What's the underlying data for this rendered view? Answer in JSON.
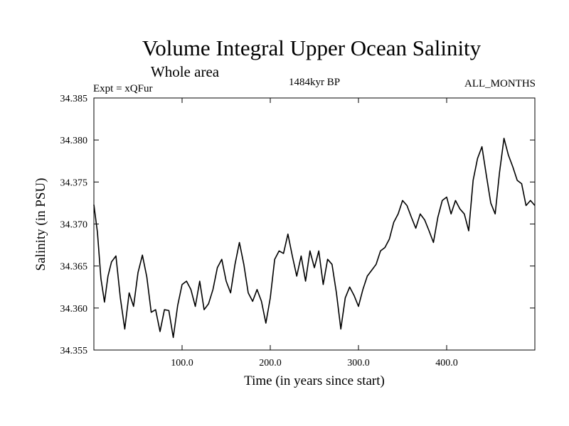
{
  "chart_data": {
    "type": "line",
    "title": "Volume Integral Upper Ocean Salinity",
    "subtitle": "Whole area",
    "expt_label": "Expt = xQFur",
    "period_label": "1484kyr BP",
    "months_label": "ALL_MONTHS",
    "xlabel": "Time (in years since start)",
    "ylabel": "Salinity (in PSU)",
    "xlim": [
      0,
      500
    ],
    "ylim": [
      34.355,
      34.385
    ],
    "xticks": [
      100,
      200,
      300,
      400
    ],
    "xtick_labels": [
      "100.0",
      "200.0",
      "300.0",
      "400.0"
    ],
    "yticks": [
      34.355,
      34.36,
      34.365,
      34.37,
      34.375,
      34.38,
      34.385
    ],
    "ytick_labels": [
      "34.355",
      "34.360",
      "34.365",
      "34.370",
      "34.375",
      "34.380",
      "34.385"
    ],
    "grid": false,
    "series": [
      {
        "name": "Salinity",
        "x": [
          0,
          4,
          8,
          12,
          16,
          20,
          25,
          30,
          35,
          40,
          45,
          50,
          55,
          60,
          65,
          70,
          75,
          80,
          85,
          90,
          95,
          100,
          105,
          110,
          115,
          120,
          125,
          130,
          135,
          140,
          145,
          150,
          155,
          160,
          165,
          170,
          175,
          180,
          185,
          190,
          195,
          200,
          205,
          210,
          215,
          220,
          225,
          230,
          235,
          240,
          245,
          250,
          255,
          260,
          265,
          270,
          275,
          280,
          285,
          290,
          295,
          300,
          305,
          310,
          315,
          320,
          325,
          330,
          335,
          340,
          345,
          350,
          355,
          360,
          365,
          370,
          375,
          380,
          385,
          390,
          395,
          400,
          405,
          410,
          415,
          420,
          425,
          430,
          435,
          440,
          445,
          450,
          455,
          460,
          465,
          470,
          475,
          480,
          485,
          490,
          495,
          500
        ],
        "values": [
          34.3723,
          34.369,
          34.3635,
          34.3607,
          34.3638,
          34.3655,
          34.3662,
          34.3612,
          34.3575,
          34.3618,
          34.3602,
          34.3642,
          34.3663,
          34.3637,
          34.3595,
          34.3598,
          34.3572,
          34.3598,
          34.3597,
          34.3565,
          34.3603,
          34.3628,
          34.3632,
          34.3622,
          34.3602,
          34.3632,
          34.3598,
          34.3605,
          34.3622,
          34.3648,
          34.3658,
          34.3632,
          34.3618,
          34.3652,
          34.3678,
          34.3652,
          34.3618,
          34.3608,
          34.3622,
          34.3608,
          34.3582,
          34.3612,
          34.3658,
          34.3668,
          34.3665,
          34.3688,
          34.3662,
          34.3638,
          34.3662,
          34.3632,
          34.3668,
          34.3648,
          34.3668,
          34.3628,
          34.3658,
          34.3652,
          34.3618,
          34.3575,
          34.3612,
          34.3625,
          34.3615,
          34.3602,
          34.3622,
          34.3638,
          34.3645,
          34.3652,
          34.3668,
          34.3672,
          34.3682,
          34.3702,
          34.3712,
          34.3728,
          34.3722,
          34.3708,
          34.3695,
          34.3712,
          34.3705,
          34.3692,
          34.3678,
          34.3708,
          34.3728,
          34.3732,
          34.3712,
          34.3728,
          34.3718,
          34.3712,
          34.3692,
          34.3752,
          34.3778,
          34.3792,
          34.3758,
          34.3725,
          34.3712,
          34.3762,
          34.3802,
          34.3782,
          34.3768,
          34.3752,
          34.3748,
          34.3722,
          34.3728,
          34.3722
        ]
      }
    ]
  }
}
